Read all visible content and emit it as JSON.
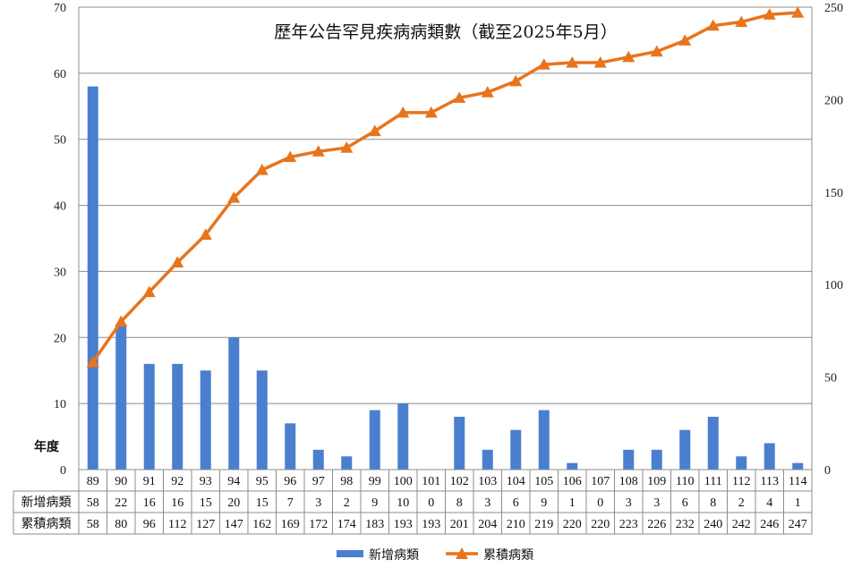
{
  "chart_data": {
    "type": "bar",
    "title": "歷年公告罕見疾病病類數（截至2025年5月）",
    "xlabel": "年度",
    "categories": [
      "89",
      "90",
      "91",
      "92",
      "93",
      "94",
      "95",
      "96",
      "97",
      "98",
      "99",
      "100",
      "101",
      "102",
      "103",
      "104",
      "105",
      "106",
      "107",
      "108",
      "109",
      "110",
      "111",
      "112",
      "113",
      "114"
    ],
    "series": [
      {
        "name": "新增病類",
        "type": "bar",
        "axis": "left",
        "color": "#4a7fcf",
        "values": [
          58,
          22,
          16,
          16,
          15,
          20,
          15,
          7,
          3,
          2,
          9,
          10,
          0,
          8,
          3,
          6,
          9,
          1,
          0,
          3,
          3,
          6,
          8,
          2,
          4,
          1
        ]
      },
      {
        "name": "累積病類",
        "type": "line",
        "axis": "right",
        "color": "#e8741c",
        "marker": "triangle",
        "values": [
          58,
          80,
          96,
          112,
          127,
          147,
          162,
          169,
          172,
          174,
          183,
          193,
          193,
          201,
          204,
          210,
          219,
          220,
          220,
          223,
          226,
          232,
          240,
          242,
          246,
          247
        ]
      }
    ],
    "ylim_left": [
      0,
      70
    ],
    "yticks_left": [
      0,
      10,
      20,
      30,
      40,
      50,
      60,
      70
    ],
    "ylim_right": [
      0,
      250
    ],
    "yticks_right": [
      0,
      50,
      100,
      150,
      200,
      250
    ],
    "grid": true,
    "legend": "bottom",
    "data_table": true
  }
}
